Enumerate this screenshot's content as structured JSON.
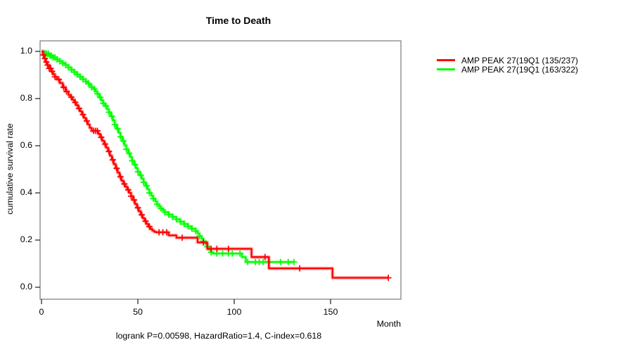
{
  "chart_data": {
    "type": "line",
    "subtype": "kaplan-meier-step-curve",
    "title": "Time to Death",
    "xlabel": "Month",
    "ylabel": "cumulative survival rate",
    "caption": "logrank P=0.00598, HazardRatio=1.4, C-index=0.618",
    "x_ticks": [
      0,
      50,
      100,
      150
    ],
    "y_ticks": [
      "0.0",
      "0.2",
      "0.4",
      "0.6",
      "0.8",
      "1.0"
    ],
    "xlim": [
      0,
      186
    ],
    "ylim": [
      0.0,
      1.0
    ],
    "grid": false,
    "legend_position": "right-outside",
    "stats": {
      "logrank_p": "0.00598",
      "hazard_ratio": "1.4",
      "c_index": "0.618"
    },
    "series": [
      {
        "name": "AMP PEAK 27(19Q1 (135/237)",
        "color": "#ff0000",
        "events": 135,
        "n": 237,
        "end_month": 180,
        "points": [
          [
            0,
            1.0
          ],
          [
            0.7,
            0.985
          ],
          [
            1.4,
            0.97
          ],
          [
            2.1,
            0.955
          ],
          [
            3,
            0.942
          ],
          [
            4,
            0.928
          ],
          [
            5,
            0.915
          ],
          [
            6,
            0.903
          ],
          [
            7,
            0.892
          ],
          [
            8,
            0.881
          ],
          [
            9.5,
            0.866
          ],
          [
            11,
            0.848
          ],
          [
            12.5,
            0.83
          ],
          [
            14,
            0.815
          ],
          [
            15,
            0.806
          ],
          [
            16,
            0.795
          ],
          [
            17,
            0.784
          ],
          [
            18,
            0.772
          ],
          [
            19,
            0.758
          ],
          [
            20,
            0.746
          ],
          [
            21,
            0.732
          ],
          [
            22,
            0.718
          ],
          [
            23,
            0.705
          ],
          [
            24,
            0.69
          ],
          [
            25,
            0.676
          ],
          [
            26,
            0.663
          ],
          [
            29.5,
            0.65
          ],
          [
            30.5,
            0.636
          ],
          [
            31.5,
            0.621
          ],
          [
            32.5,
            0.607
          ],
          [
            33.5,
            0.592
          ],
          [
            34.5,
            0.576
          ],
          [
            35.5,
            0.558
          ],
          [
            36.5,
            0.54
          ],
          [
            37.5,
            0.522
          ],
          [
            38.5,
            0.504
          ],
          [
            39.5,
            0.486
          ],
          [
            40.5,
            0.468
          ],
          [
            41.5,
            0.452
          ],
          [
            42.5,
            0.438
          ],
          [
            43.5,
            0.426
          ],
          [
            44.5,
            0.413
          ],
          [
            45.5,
            0.4
          ],
          [
            46.5,
            0.386
          ],
          [
            47.5,
            0.37
          ],
          [
            48.5,
            0.353
          ],
          [
            49.5,
            0.337
          ],
          [
            50.5,
            0.322
          ],
          [
            51.5,
            0.307
          ],
          [
            52.5,
            0.293
          ],
          [
            53.5,
            0.28
          ],
          [
            54.5,
            0.268
          ],
          [
            55.5,
            0.257
          ],
          [
            56.5,
            0.247
          ],
          [
            57.5,
            0.24
          ],
          [
            58.5,
            0.235
          ],
          [
            59.5,
            0.233
          ],
          [
            66,
            0.22
          ],
          [
            70,
            0.21
          ],
          [
            81,
            0.19
          ],
          [
            86,
            0.163
          ],
          [
            109,
            0.128
          ],
          [
            118,
            0.08
          ],
          [
            151,
            0.04
          ]
        ],
        "censor_months": [
          1,
          1.8,
          2.5,
          3.2,
          4,
          4.8,
          5.5,
          7,
          9,
          11.5,
          13,
          15.5,
          17.5,
          19.5,
          21.5,
          23.5,
          27,
          28,
          29,
          31,
          33,
          35,
          37,
          39,
          41,
          43,
          45,
          46.5,
          48,
          50,
          52,
          54,
          56,
          61,
          63,
          65,
          73,
          84,
          88,
          91,
          97,
          116,
          134,
          180
        ]
      },
      {
        "name": "AMP PEAK 27(19Q1 (163/322)",
        "color": "#00ff00",
        "events": 163,
        "n": 322,
        "end_month": 131,
        "points": [
          [
            0,
            1.0
          ],
          [
            2,
            0.99
          ],
          [
            4,
            0.982
          ],
          [
            6,
            0.974
          ],
          [
            8,
            0.966
          ],
          [
            9.5,
            0.958
          ],
          [
            11,
            0.95
          ],
          [
            12.5,
            0.942
          ],
          [
            14,
            0.932
          ],
          [
            15.5,
            0.922
          ],
          [
            17,
            0.912
          ],
          [
            18.5,
            0.902
          ],
          [
            20,
            0.892
          ],
          [
            21.5,
            0.882
          ],
          [
            23,
            0.872
          ],
          [
            24,
            0.864
          ],
          [
            25,
            0.856
          ],
          [
            26,
            0.848
          ],
          [
            27,
            0.84
          ],
          [
            28,
            0.83
          ],
          [
            29,
            0.82
          ],
          [
            30,
            0.805
          ],
          [
            31,
            0.793
          ],
          [
            32,
            0.78
          ],
          [
            33,
            0.768
          ],
          [
            34,
            0.755
          ],
          [
            35,
            0.742
          ],
          [
            36,
            0.725
          ],
          [
            37,
            0.708
          ],
          [
            38,
            0.69
          ],
          [
            39,
            0.672
          ],
          [
            40,
            0.655
          ],
          [
            41,
            0.638
          ],
          [
            42,
            0.62
          ],
          [
            43,
            0.602
          ],
          [
            44,
            0.585
          ],
          [
            45,
            0.568
          ],
          [
            46,
            0.552
          ],
          [
            47,
            0.536
          ],
          [
            48,
            0.52
          ],
          [
            49,
            0.505
          ],
          [
            50,
            0.49
          ],
          [
            51,
            0.475
          ],
          [
            52,
            0.46
          ],
          [
            53,
            0.445
          ],
          [
            54,
            0.43
          ],
          [
            55,
            0.415
          ],
          [
            56,
            0.4
          ],
          [
            57,
            0.388
          ],
          [
            58,
            0.376
          ],
          [
            59,
            0.364
          ],
          [
            60,
            0.352
          ],
          [
            61,
            0.342
          ],
          [
            62,
            0.334
          ],
          [
            63,
            0.326
          ],
          [
            64,
            0.318
          ],
          [
            66,
            0.308
          ],
          [
            68,
            0.298
          ],
          [
            70,
            0.288
          ],
          [
            72,
            0.278
          ],
          [
            74,
            0.268
          ],
          [
            76,
            0.258
          ],
          [
            78,
            0.248
          ],
          [
            80,
            0.238
          ],
          [
            81,
            0.228
          ],
          [
            82,
            0.217
          ],
          [
            83,
            0.206
          ],
          [
            84,
            0.195
          ],
          [
            85,
            0.184
          ],
          [
            86,
            0.172
          ],
          [
            87,
            0.16
          ],
          [
            88,
            0.148
          ],
          [
            89,
            0.143
          ],
          [
            104,
            0.128
          ],
          [
            106,
            0.107
          ]
        ],
        "censor_months": [
          2,
          2.8,
          3.6,
          4.4,
          5.2,
          6,
          7,
          8,
          9.5,
          11,
          12.5,
          14,
          15.5,
          17,
          18.5,
          20,
          21.5,
          23,
          24.5,
          26,
          27.5,
          29,
          30.5,
          32,
          33.5,
          35,
          36.5,
          38,
          39.5,
          41,
          42.5,
          44,
          45.5,
          47,
          48.5,
          50,
          51.5,
          53,
          54.5,
          56,
          58,
          60,
          62,
          64,
          66,
          68,
          70,
          72,
          74,
          76,
          78,
          80,
          82,
          84,
          86,
          88,
          91,
          94,
          97,
          99,
          103,
          107,
          111,
          113,
          115,
          118,
          124,
          128,
          131
        ]
      }
    ],
    "frame_color": "#7a7a7a",
    "tick_color": "#1a1a1a"
  }
}
